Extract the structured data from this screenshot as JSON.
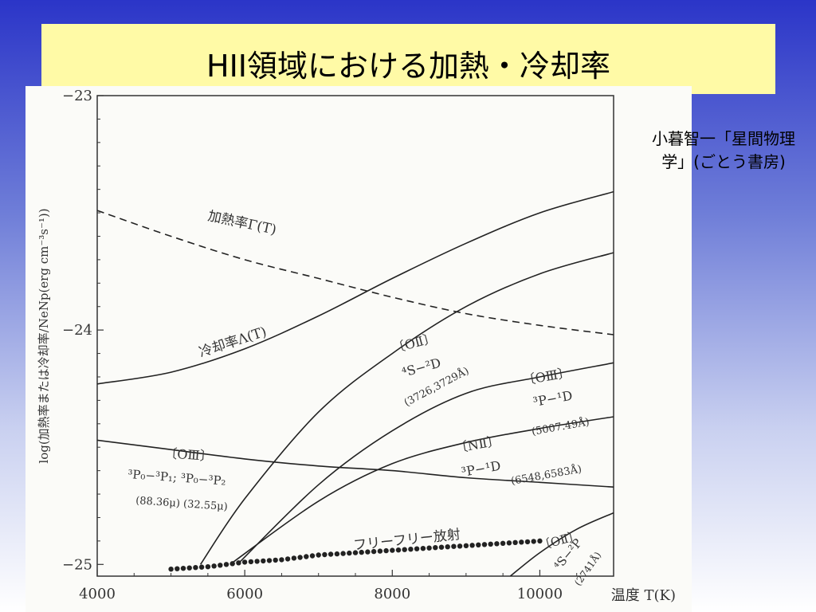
{
  "slide": {
    "title": "HII領域における加熱・冷却率",
    "source_line1": "小暮智一「星間物理",
    "source_line2": "学」(ごとう書房)"
  },
  "chart_data": {
    "type": "line",
    "xlabel": "温度 T(K)",
    "ylabel": "log(加熱率または冷却率/NeNp(erg cm⁻³s⁻¹))",
    "xlim": [
      4000,
      11000
    ],
    "ylim": [
      -25.05,
      -23
    ],
    "x_ticks": [
      "4000",
      "6000",
      "8000",
      "10000"
    ],
    "y_ticks": [
      "−23",
      "−24",
      "−25"
    ],
    "grid": false,
    "series": [
      {
        "name": "加熱率Γ(T)",
        "style": "dashed",
        "x": [
          4000,
          5000,
          6000,
          7000,
          8000,
          9000,
          10000,
          11000
        ],
        "y": [
          -23.49,
          -23.6,
          -23.7,
          -23.78,
          -23.86,
          -23.93,
          -23.98,
          -24.02
        ]
      },
      {
        "name": "冷却率Λ(T)",
        "style": "solid",
        "x": [
          4000,
          5000,
          6000,
          7000,
          8000,
          9000,
          10000,
          11000
        ],
        "y": [
          -24.23,
          -24.18,
          -24.08,
          -23.94,
          -23.78,
          -23.63,
          -23.5,
          -23.41
        ]
      },
      {
        "name": "[OII] 4S-2D (3726,3729Å)",
        "style": "solid",
        "x": [
          5400,
          6000,
          7000,
          8000,
          9000,
          10000,
          11000
        ],
        "y": [
          -25.0,
          -24.72,
          -24.35,
          -24.1,
          -23.9,
          -23.76,
          -23.67
        ]
      },
      {
        "name": "[OIII] 3P-1D (5007.49Å)",
        "style": "solid",
        "x": [
          5900,
          7000,
          8000,
          9000,
          10000,
          11000
        ],
        "y": [
          -25.0,
          -24.66,
          -24.43,
          -24.27,
          -24.2,
          -24.14
        ]
      },
      {
        "name": "[NII] 3P-1D (6548,6583Å)",
        "style": "solid",
        "x": [
          5800,
          7000,
          8000,
          9000,
          10000,
          11000
        ],
        "y": [
          -25.0,
          -24.73,
          -24.57,
          -24.48,
          -24.42,
          -24.37
        ]
      },
      {
        "name": "[OIII] 3P0-3P1; 3P0-3P2 (88.36μ)(32.55μ)",
        "style": "solid",
        "x": [
          4000,
          5000,
          6000,
          7000,
          8000,
          9000,
          10000,
          11000
        ],
        "y": [
          -24.47,
          -24.51,
          -24.55,
          -24.58,
          -24.6,
          -24.63,
          -24.65,
          -24.67
        ]
      },
      {
        "name": "[OII] 4S-2P (2741Å)",
        "style": "solid",
        "x": [
          9600,
          10000,
          10500,
          11000
        ],
        "y": [
          -25.05,
          -24.95,
          -24.85,
          -24.78
        ]
      },
      {
        "name": "フリーフリー放射",
        "style": "dotted",
        "x": [
          5000,
          5500,
          6000,
          6500,
          7000,
          7500,
          8000,
          8500,
          9000,
          9500,
          10000
        ],
        "y": [
          -25.02,
          -25.01,
          -24.99,
          -24.98,
          -24.96,
          -24.95,
          -24.94,
          -24.93,
          -24.92,
          -24.91,
          -24.9
        ]
      }
    ],
    "annotations": {
      "heating": "加熱率Γ(T)",
      "cooling": "冷却率Λ(T)",
      "oii_a": "〔OⅡ〕",
      "oii_a_trans": "⁴S−²D",
      "oii_a_wl": "(3726,3729Å)",
      "oiii_a": "〔OⅢ〕",
      "oiii_a_trans": "³P−¹D",
      "oiii_a_wl": "(5007.49Å)",
      "nii": "〔NⅡ〕",
      "nii_trans": "³P−¹D",
      "nii_wl": "(6548,6583Å)",
      "oiii_b": "〔OⅢ〕",
      "oiii_b_trans": "³P₀−³P₁; ³P₀−³P₂",
      "oiii_b_wl": "(88.36μ) (32.55μ)",
      "ff": "フリーフリー放射",
      "oii_b": "〔OⅡ〕",
      "oii_b_trans": "⁴S−²P",
      "oii_b_wl": "(2741Å)"
    }
  }
}
